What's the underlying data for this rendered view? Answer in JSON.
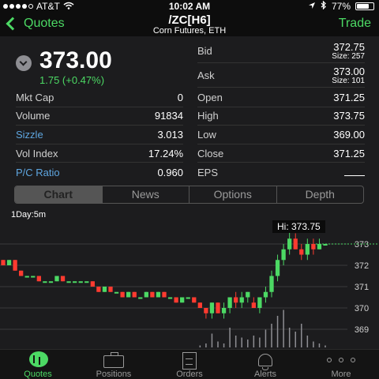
{
  "status_bar": {
    "carrier": "AT&T",
    "time": "10:02 AM",
    "battery": "77%",
    "battery_level": 0.77
  },
  "nav": {
    "back_label": "Quotes",
    "symbol": "/ZC[H6]",
    "description": "Corn Futures, ETH",
    "trade_label": "Trade"
  },
  "quote": {
    "last": "373.00",
    "change": "1.75 (+0.47%)"
  },
  "stats_left": [
    {
      "label": "Mkt Cap",
      "value": "0",
      "link": false
    },
    {
      "label": "Volume",
      "value": "91834",
      "link": false
    },
    {
      "label": "Sizzle",
      "value": "3.013",
      "link": true
    },
    {
      "label": "Vol Index",
      "value": "17.24%",
      "link": false
    },
    {
      "label": "P/C Ratio",
      "value": "0.960",
      "link": true
    }
  ],
  "bid": {
    "label": "Bid",
    "value": "372.75",
    "size": "Size: 257"
  },
  "ask": {
    "label": "Ask",
    "value": "373.00",
    "size": "Size: 101"
  },
  "stats_right": [
    {
      "label": "Open",
      "value": "371.25"
    },
    {
      "label": "High",
      "value": "373.75"
    },
    {
      "label": "Low",
      "value": "369.00"
    },
    {
      "label": "Close",
      "value": "371.25"
    },
    {
      "label": "EPS",
      "value": ""
    }
  ],
  "segments": [
    "Chart",
    "News",
    "Options",
    "Depth"
  ],
  "active_segment": 0,
  "chart": {
    "timeframe": "1Day:5m",
    "hi_label": "Hi: 373.75"
  },
  "chart_data": {
    "type": "candlestick",
    "y_ticks": [
      373,
      372,
      371,
      370,
      369
    ],
    "ylim": [
      368.5,
      374.0
    ],
    "reference_line": 373.0,
    "colors": {
      "up": "#4cd964",
      "down": "#ff3b30",
      "grid": "#3a3a3c",
      "volume": "#8e8e93"
    },
    "candles": [
      [
        372.25,
        372.25,
        372.0,
        372.0
      ],
      [
        372.0,
        372.25,
        372.0,
        372.25
      ],
      [
        372.25,
        372.25,
        371.75,
        371.75
      ],
      [
        371.75,
        371.75,
        371.5,
        371.5
      ],
      [
        371.5,
        371.5,
        371.5,
        371.5
      ],
      [
        371.5,
        371.5,
        371.5,
        371.5
      ],
      [
        371.5,
        371.5,
        371.25,
        371.25
      ],
      [
        371.25,
        371.25,
        371.25,
        371.25
      ],
      [
        371.25,
        371.25,
        371.25,
        371.25
      ],
      [
        371.25,
        371.5,
        371.25,
        371.5
      ],
      [
        371.5,
        371.5,
        371.25,
        371.25
      ],
      [
        371.25,
        371.25,
        371.25,
        371.25
      ],
      [
        371.25,
        371.25,
        371.25,
        371.25
      ],
      [
        371.25,
        371.25,
        371.25,
        371.25
      ],
      [
        371.25,
        371.25,
        371.25,
        371.25
      ],
      [
        371.25,
        371.25,
        371.0,
        371.0
      ],
      [
        371.0,
        371.0,
        370.75,
        370.75
      ],
      [
        370.75,
        371.0,
        370.75,
        371.0
      ],
      [
        371.0,
        371.0,
        370.75,
        370.75
      ],
      [
        370.75,
        370.75,
        370.75,
        370.75
      ],
      [
        370.75,
        370.75,
        370.5,
        370.5
      ],
      [
        370.5,
        370.75,
        370.5,
        370.75
      ],
      [
        370.75,
        370.75,
        370.5,
        370.5
      ],
      [
        370.5,
        370.5,
        370.5,
        370.5
      ],
      [
        370.5,
        370.75,
        370.5,
        370.75
      ],
      [
        370.75,
        370.75,
        370.5,
        370.5
      ],
      [
        370.5,
        370.75,
        370.5,
        370.75
      ],
      [
        370.75,
        370.75,
        370.5,
        370.5
      ],
      [
        370.5,
        370.5,
        370.5,
        370.5
      ],
      [
        370.5,
        370.5,
        370.25,
        370.25
      ],
      [
        370.25,
        370.5,
        370.25,
        370.5
      ],
      [
        370.5,
        370.5,
        370.5,
        370.5
      ],
      [
        370.5,
        370.5,
        370.25,
        370.25
      ],
      [
        370.25,
        370.25,
        370.0,
        370.0
      ],
      [
        370.0,
        370.0,
        369.5,
        369.75
      ],
      [
        369.75,
        370.25,
        369.5,
        370.25
      ],
      [
        370.25,
        370.25,
        369.75,
        369.75
      ],
      [
        369.75,
        370.25,
        369.5,
        370.0
      ],
      [
        370.0,
        370.5,
        369.75,
        370.5
      ],
      [
        370.5,
        370.75,
        370.0,
        370.25
      ],
      [
        370.25,
        370.75,
        370.0,
        370.5
      ],
      [
        370.5,
        370.75,
        370.25,
        370.75
      ],
      [
        370.25,
        370.5,
        370.0,
        370.0
      ],
      [
        370.0,
        370.5,
        369.75,
        370.5
      ],
      [
        370.5,
        371.0,
        370.25,
        370.75
      ],
      [
        370.75,
        371.75,
        370.5,
        371.5
      ],
      [
        371.5,
        372.5,
        371.25,
        372.25
      ],
      [
        372.25,
        373.0,
        372.0,
        372.75
      ],
      [
        372.75,
        373.75,
        372.5,
        373.25
      ],
      [
        373.25,
        373.5,
        372.75,
        372.75
      ],
      [
        372.75,
        373.0,
        372.25,
        372.5
      ],
      [
        372.5,
        373.25,
        372.25,
        373.0
      ],
      [
        373.0,
        373.25,
        372.5,
        372.75
      ],
      [
        372.75,
        373.25,
        372.75,
        373.0
      ],
      [
        373.0,
        373.0,
        373.0,
        373.0
      ]
    ],
    "volume": [
      0,
      0,
      0,
      0,
      0,
      0,
      0,
      0,
      0,
      0,
      0,
      0,
      0,
      0,
      0,
      0,
      0,
      0,
      0,
      0,
      0,
      0,
      0,
      0,
      0,
      0,
      0,
      0,
      0,
      0,
      0,
      0,
      0,
      0.05,
      0.1,
      0.35,
      0.15,
      0.1,
      0.5,
      0.3,
      0.25,
      0.2,
      0.3,
      0.25,
      0.45,
      0.6,
      0.8,
      0.95,
      0.5,
      0.4,
      0.6,
      0.3,
      0.15,
      0.1,
      0.05
    ]
  },
  "tabs": [
    {
      "label": "Quotes",
      "icon": "quotes-icon",
      "active": true
    },
    {
      "label": "Positions",
      "icon": "positions-icon",
      "active": false
    },
    {
      "label": "Orders",
      "icon": "orders-icon",
      "active": false
    },
    {
      "label": "Alerts",
      "icon": "alerts-icon",
      "active": false
    },
    {
      "label": "More",
      "icon": "more-icon",
      "active": false
    }
  ]
}
